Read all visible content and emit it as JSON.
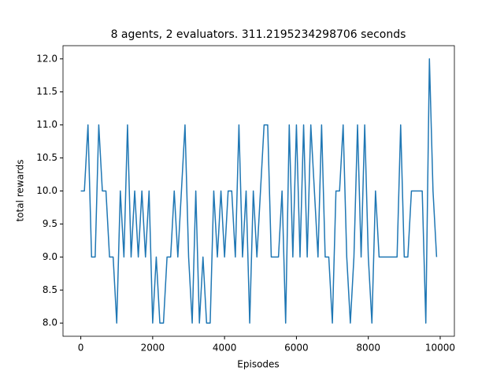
{
  "chart_data": {
    "type": "line",
    "title": "8 agents, 2 evaluators. 311.2195234298706 seconds",
    "x_label": "Episodes",
    "y_label": "total rewards",
    "color": "#1f77b4",
    "x": [
      0,
      100,
      200,
      300,
      400,
      500,
      600,
      700,
      800,
      900,
      1000,
      1100,
      1200,
      1300,
      1400,
      1500,
      1600,
      1700,
      1800,
      1900,
      2000,
      2100,
      2200,
      2300,
      2400,
      2500,
      2600,
      2700,
      2800,
      2900,
      3000,
      3100,
      3200,
      3300,
      3400,
      3500,
      3600,
      3700,
      3800,
      3900,
      4000,
      4100,
      4200,
      4300,
      4400,
      4500,
      4600,
      4700,
      4800,
      4900,
      5000,
      5100,
      5200,
      5300,
      5400,
      5500,
      5600,
      5700,
      5800,
      5900,
      6000,
      6100,
      6200,
      6300,
      6400,
      6500,
      6600,
      6700,
      6800,
      6900,
      7000,
      7100,
      7200,
      7300,
      7400,
      7500,
      7600,
      7700,
      7800,
      7900,
      8000,
      8100,
      8200,
      8300,
      8400,
      8500,
      8600,
      8700,
      8800,
      8900,
      9000,
      9100,
      9200,
      9300,
      9400,
      9500,
      9600,
      9700,
      9800,
      9900
    ],
    "values": [
      10,
      10,
      11,
      9,
      9,
      11,
      10,
      10,
      9,
      9,
      8,
      10,
      9,
      11,
      9,
      10,
      9,
      10,
      9,
      10,
      8,
      9,
      8,
      8,
      9,
      9,
      10,
      9,
      10,
      11,
      9,
      8,
      10,
      8,
      9,
      8,
      8,
      10,
      9,
      10,
      9,
      10,
      10,
      9,
      11,
      9,
      10,
      8,
      10,
      9,
      10,
      11,
      11,
      9,
      9,
      9,
      10,
      8,
      11,
      9,
      11,
      9,
      11,
      9,
      11,
      10,
      9,
      11,
      9,
      9,
      8,
      10,
      10,
      11,
      9,
      8,
      9,
      11,
      9,
      11,
      9,
      8,
      10,
      9,
      9,
      9,
      9,
      9,
      9,
      11,
      9,
      9,
      10,
      10,
      10,
      10,
      8,
      12,
      10,
      9
    ],
    "xlim": [
      -495,
      10395
    ],
    "ylim": [
      7.8,
      12.2
    ],
    "xticks": [
      0,
      2000,
      4000,
      6000,
      8000,
      10000
    ],
    "yticks": [
      {
        "value": 8,
        "label": "8.0"
      },
      8.5,
      {
        "value": 9,
        "label": "9.0"
      },
      9.5,
      {
        "value": 10,
        "label": "10.0"
      },
      10.5,
      {
        "value": 11,
        "label": "11.0"
      },
      11.5,
      {
        "value": 12,
        "label": "12.0"
      }
    ],
    "grid": false
  }
}
